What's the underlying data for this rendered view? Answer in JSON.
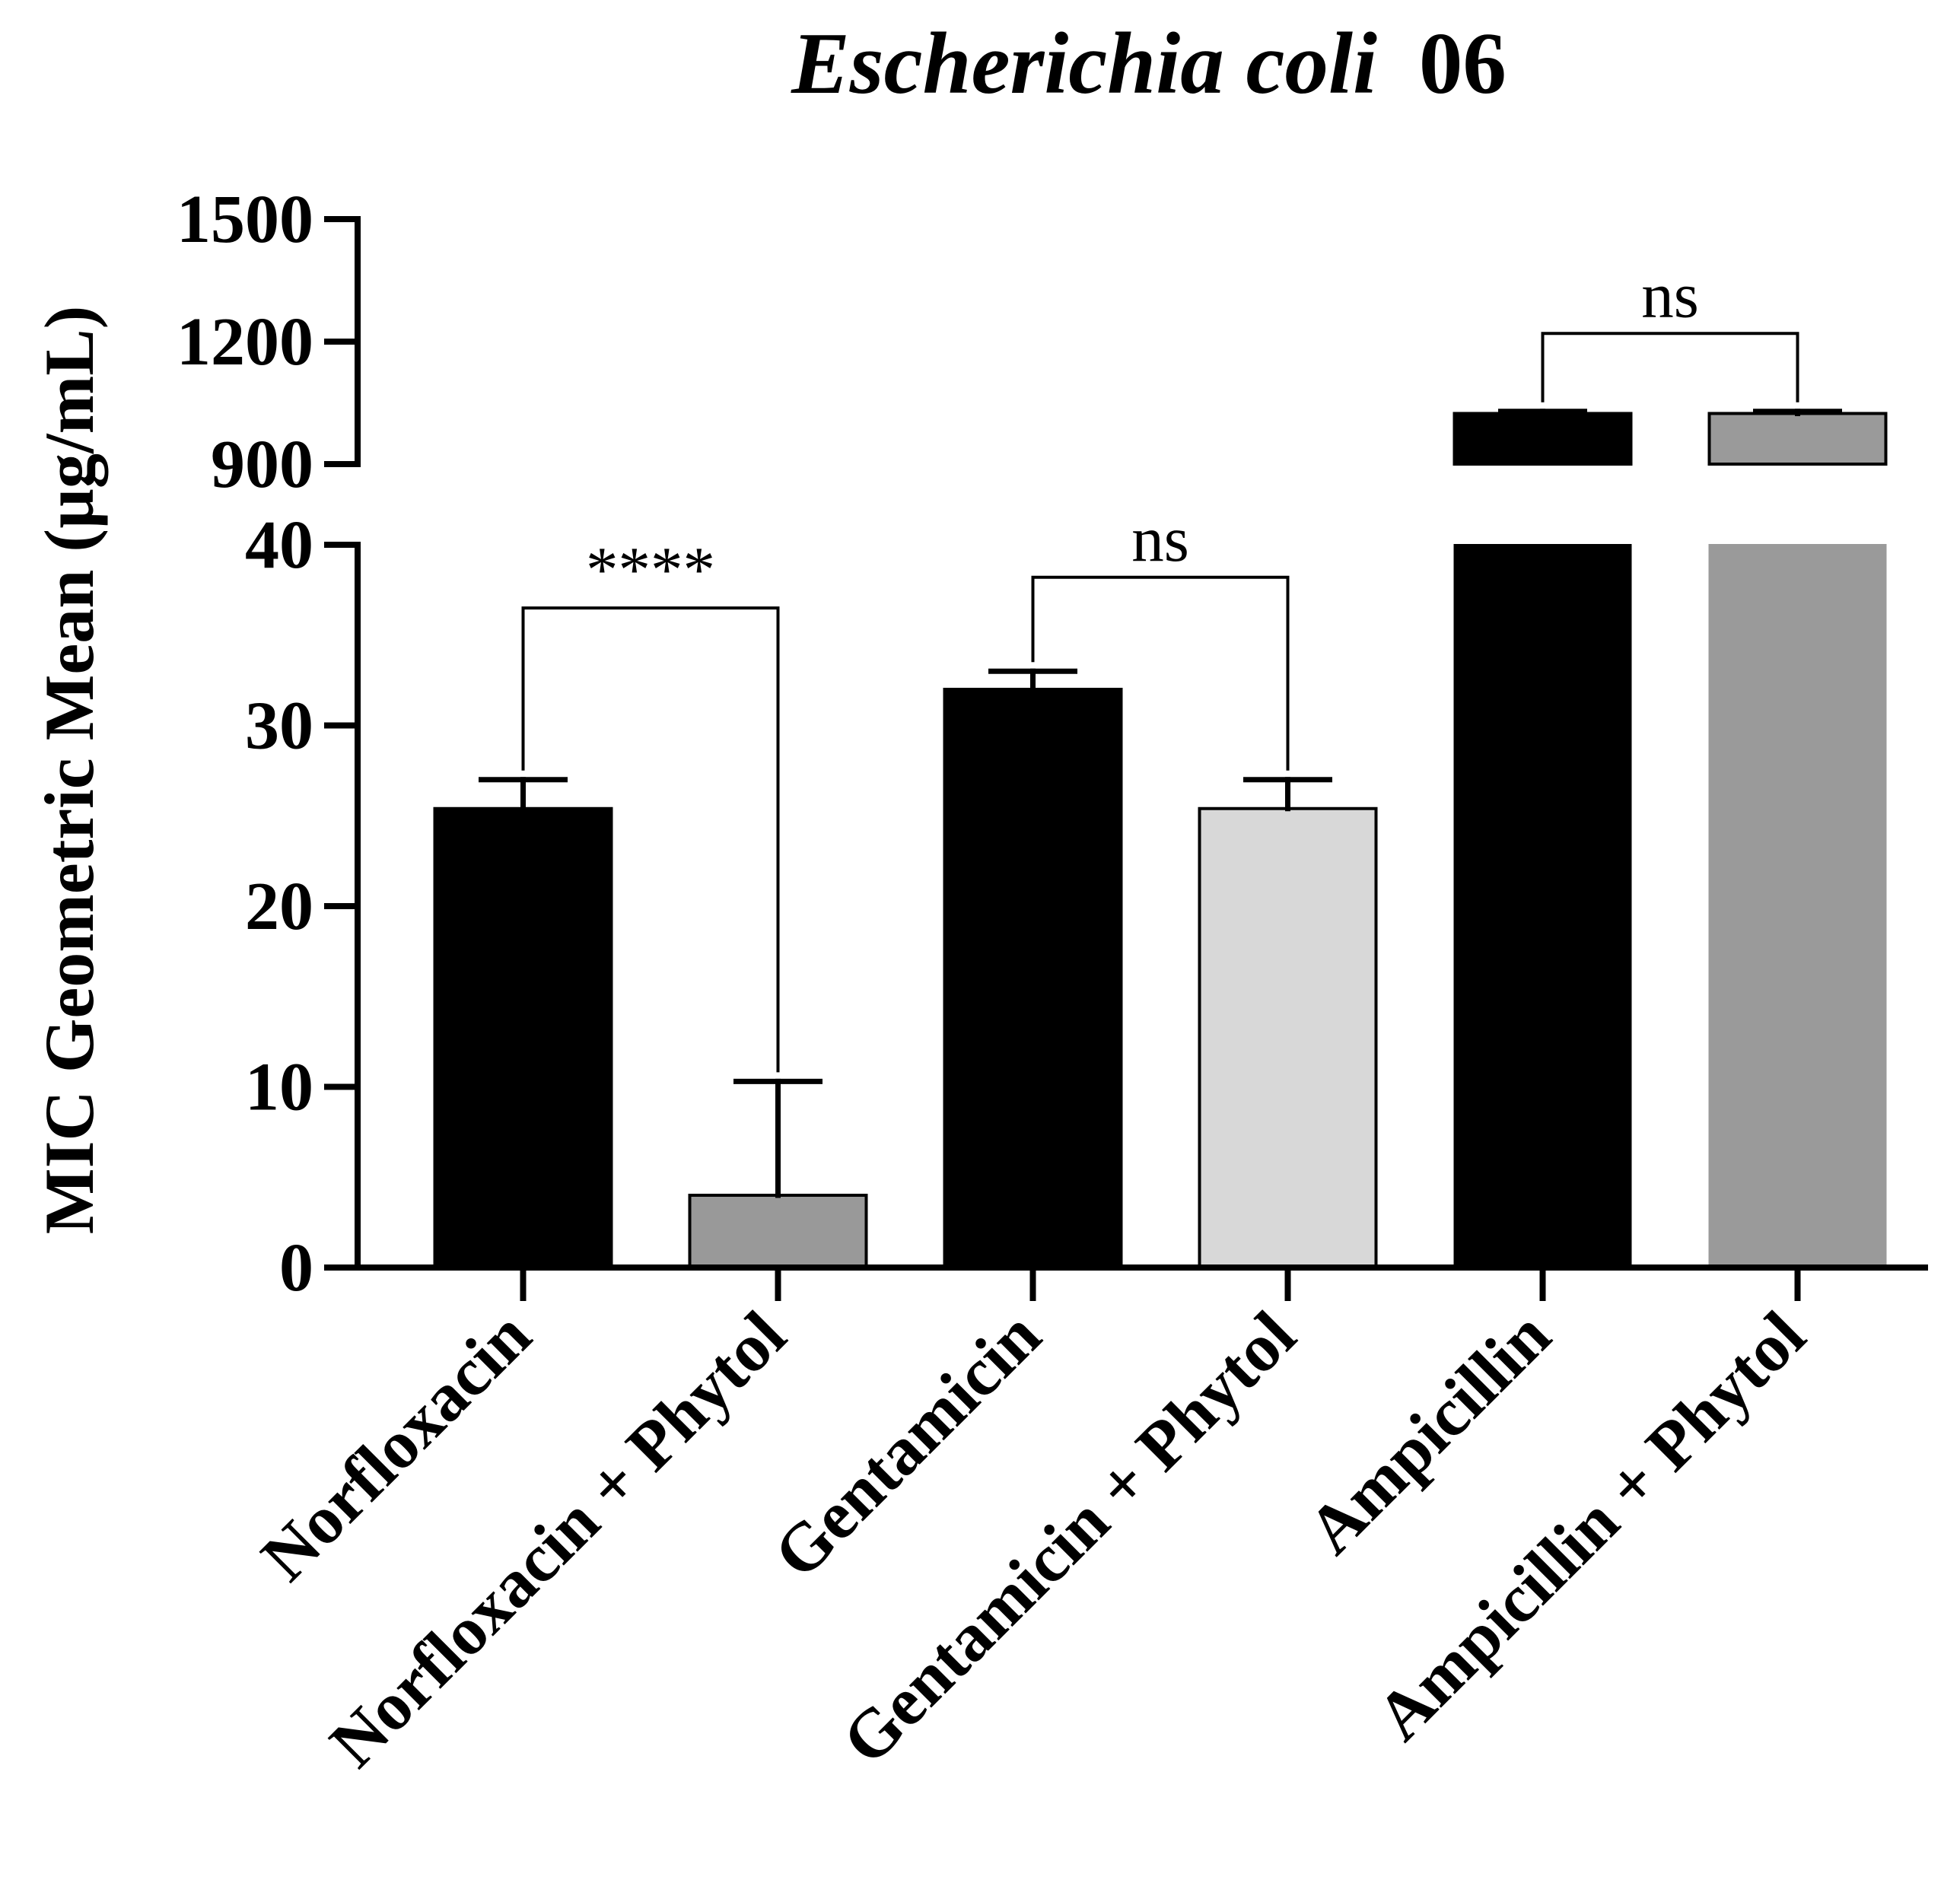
{
  "chart_data": {
    "type": "bar",
    "title": "Escherichia coli",
    "title_suffix": "06",
    "ylabel": "MIC Geometric Mean (µg/mL)",
    "xlabel": "",
    "categories": [
      "Norfloxacin",
      "Norfloxacin + Phytol",
      "Gentamicin",
      "Gentamicin + Phytol",
      "Ampicillin",
      "Ampicillin + Phytol"
    ],
    "values": [
      25.4,
      4.0,
      32.0,
      25.4,
      1024,
      1024
    ],
    "error_upper": [
      1.6,
      6.3,
      1.0,
      1.6,
      5,
      5
    ],
    "bar_colors": [
      "#000000",
      "#999999",
      "#000000",
      "#d8d8d8",
      "#000000",
      "#9a9a9a"
    ],
    "y_axis_segments": [
      {
        "range": [
          0,
          40
        ],
        "ticks": [
          0,
          10,
          20,
          30,
          40
        ]
      },
      {
        "range": [
          900,
          1500
        ],
        "ticks": [
          900,
          1200,
          1500
        ]
      }
    ],
    "comparisons": [
      {
        "bars": [
          0,
          1
        ],
        "label": "****",
        "level": 36.5
      },
      {
        "bars": [
          2,
          3
        ],
        "label": "ns",
        "level": 38.2
      },
      {
        "bars": [
          4,
          5
        ],
        "label": "ns",
        "level": 1220
      }
    ],
    "grid": false,
    "legend": "none"
  }
}
